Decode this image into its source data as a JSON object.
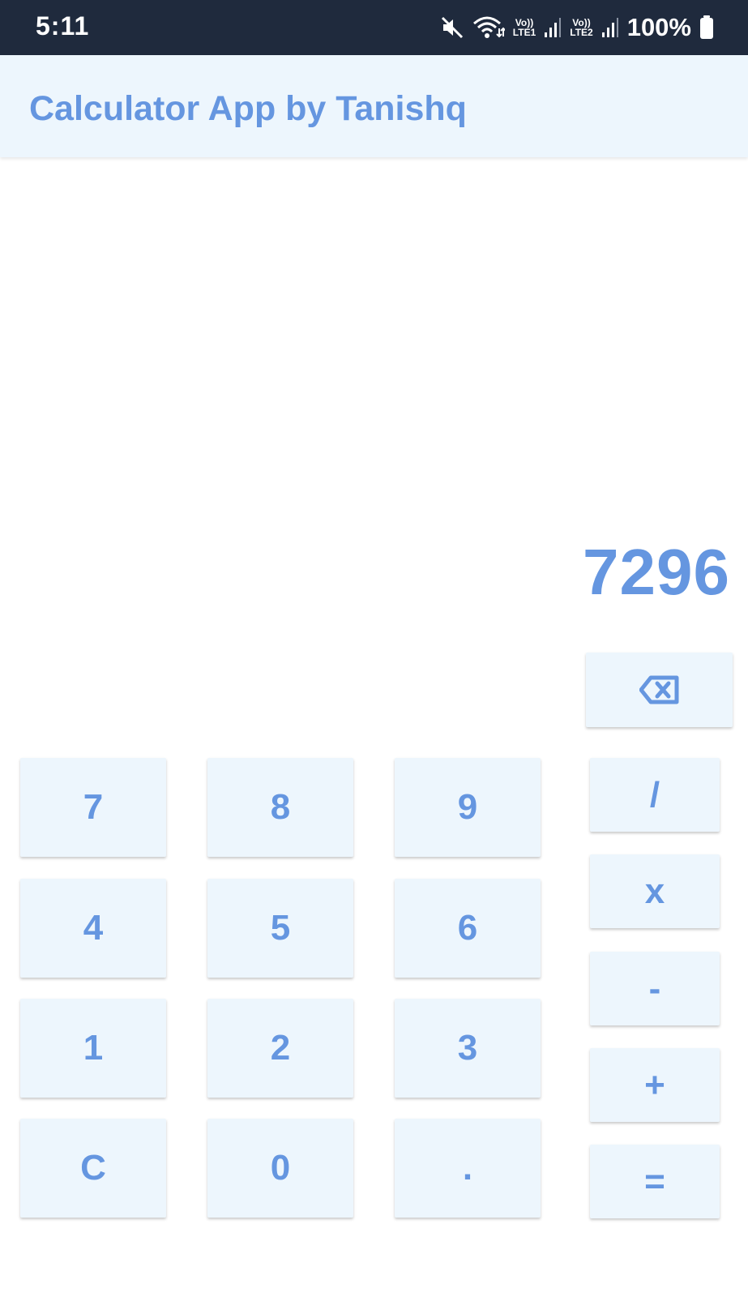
{
  "status_bar": {
    "time": "5:11",
    "lte1_top": "Vo))",
    "lte1_bottom": "LTE1",
    "lte2_top": "Vo))",
    "lte2_bottom": "LTE2",
    "battery": "100%",
    "icons": [
      "mute-icon",
      "wifi-icon",
      "signal-icon",
      "signal-icon",
      "battery-icon"
    ]
  },
  "app_bar": {
    "title": "Calculator App by Tanishq"
  },
  "display": {
    "value": "7296"
  },
  "keys": {
    "backspace_icon": "backspace-icon",
    "digits": [
      "7",
      "8",
      "9",
      "4",
      "5",
      "6",
      "1",
      "2",
      "3",
      "C",
      "0",
      "."
    ],
    "operators": [
      "/",
      "x",
      "-",
      "+",
      "="
    ]
  },
  "colors": {
    "accent": "#6596e0",
    "button_bg": "#edf6fd",
    "status_bar_bg": "#1f2a3d"
  }
}
